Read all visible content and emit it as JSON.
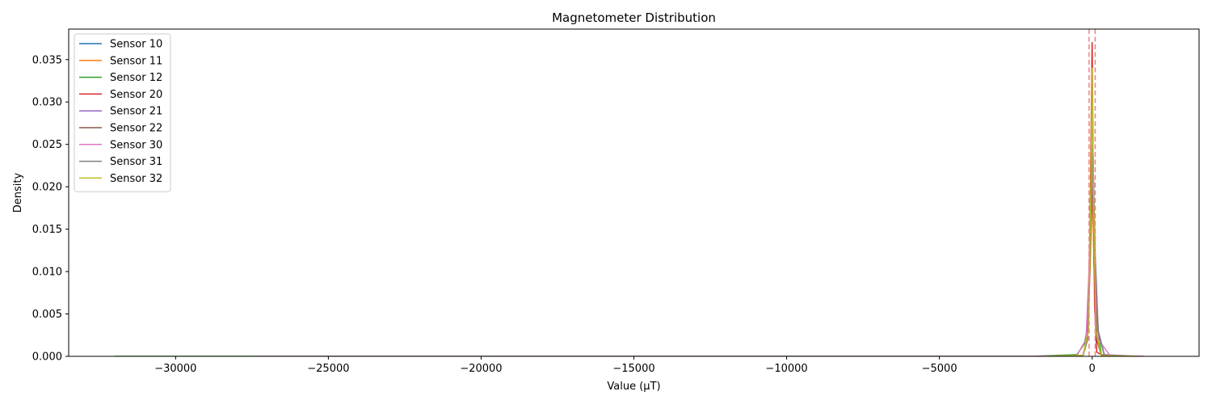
{
  "chart_data": {
    "type": "line",
    "title": "Magnetometer Distribution",
    "xlabel": "Value (µT)",
    "ylabel": "Density",
    "xlim": [
      -33500,
      3500
    ],
    "ylim": [
      0,
      0.0386
    ],
    "xticks": [
      -30000,
      -25000,
      -20000,
      -15000,
      -10000,
      -5000,
      0
    ],
    "xtick_labels": [
      "−30000",
      "−25000",
      "−20000",
      "−15000",
      "−10000",
      "−5000",
      "0"
    ],
    "yticks": [
      0,
      0.005,
      0.01,
      0.015,
      0.02,
      0.025,
      0.03,
      0.035
    ],
    "ytick_labels": [
      "0.000",
      "0.005",
      "0.010",
      "0.015",
      "0.020",
      "0.025",
      "0.030",
      "0.035"
    ],
    "grid": false,
    "legend_position": "top-left",
    "reference_lines": [
      {
        "x": -100,
        "color": "#f08080",
        "style": "dashed"
      },
      {
        "x": 100,
        "color": "#f08080",
        "style": "dashed"
      }
    ],
    "series": [
      {
        "name": "Sensor 10",
        "color": "#1f77b4",
        "x": [
          -1500,
          -300,
          -150,
          -60,
          0,
          60,
          150,
          300,
          1500
        ],
        "y": [
          0,
          0.0001,
          0.002,
          0.012,
          0.022,
          0.012,
          0.002,
          0.0001,
          0
        ]
      },
      {
        "name": "Sensor 11",
        "color": "#ff7f0e",
        "x": [
          -1500,
          -300,
          -150,
          -60,
          0,
          60,
          150,
          300,
          1500
        ],
        "y": [
          0,
          0.0001,
          0.002,
          0.011,
          0.02,
          0.011,
          0.002,
          0.0001,
          0
        ]
      },
      {
        "name": "Sensor 12",
        "color": "#2ca02c",
        "x": [
          -32000,
          -20000,
          -10000,
          -2000,
          -500,
          -250,
          -150,
          -80,
          0,
          100,
          300,
          1000
        ],
        "y": [
          0,
          0,
          0,
          0,
          0.0002,
          0.0015,
          0.0035,
          0.012,
          0.031,
          0.006,
          0.0002,
          0
        ]
      },
      {
        "name": "Sensor 20",
        "color": "#d62728",
        "x": [
          -1000,
          -300,
          -150,
          -70,
          0,
          40,
          80,
          150,
          400,
          1700
        ],
        "y": [
          0,
          0.0001,
          0.002,
          0.015,
          0.037,
          0.02,
          0.006,
          0.0005,
          0,
          0
        ]
      },
      {
        "name": "Sensor 21",
        "color": "#9467bd",
        "x": [
          -1500,
          -300,
          -120,
          -40,
          30,
          100,
          200,
          400,
          1500
        ],
        "y": [
          0,
          0.0001,
          0.003,
          0.017,
          0.024,
          0.01,
          0.003,
          0.0002,
          0
        ]
      },
      {
        "name": "Sensor 22",
        "color": "#8c564b",
        "x": [
          -1500,
          -300,
          -150,
          -60,
          10,
          80,
          150,
          300,
          1500
        ],
        "y": [
          0,
          0.0001,
          0.002,
          0.013,
          0.021,
          0.011,
          0.002,
          0.0001,
          0
        ]
      },
      {
        "name": "Sensor 30",
        "color": "#e377c2",
        "x": [
          -27500,
          -20000,
          -10000,
          -2000,
          -500,
          -200,
          -80,
          0,
          80,
          200,
          600
        ],
        "y": [
          0,
          0,
          0,
          0,
          0.0001,
          0.002,
          0.012,
          0.024,
          0.012,
          0.002,
          0
        ]
      },
      {
        "name": "Sensor 31",
        "color": "#7f7f7f",
        "x": [
          -1500,
          -300,
          -150,
          -60,
          20,
          100,
          200,
          400,
          1500
        ],
        "y": [
          0,
          0.0001,
          0.002,
          0.014,
          0.025,
          0.012,
          0.003,
          0.0001,
          0
        ]
      },
      {
        "name": "Sensor 32",
        "color": "#bcbd22",
        "x": [
          -1500,
          -300,
          -120,
          -40,
          0,
          40,
          120,
          300,
          1500
        ],
        "y": [
          0,
          0.0001,
          0.003,
          0.02,
          0.034,
          0.02,
          0.003,
          0.0001,
          0
        ]
      }
    ]
  }
}
